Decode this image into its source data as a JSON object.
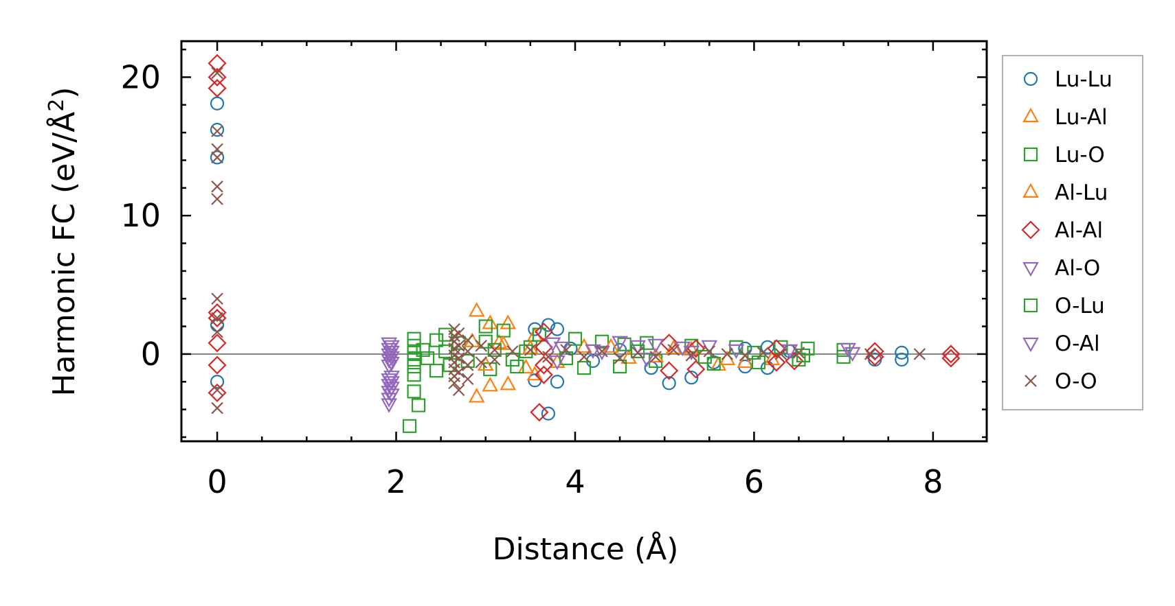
{
  "chart_data": {
    "type": "scatter",
    "xlabel": "Distance (Å)",
    "ylabel_main": "Harmonic FC (eV/Å",
    "ylabel_sup": "2",
    "ylabel_close": ")",
    "xlim": [
      -0.4,
      8.6
    ],
    "ylim": [
      -6.3,
      22.6
    ],
    "xticks": [
      0,
      2,
      4,
      6,
      8
    ],
    "yticks": [
      0,
      10,
      20
    ],
    "xtick_labels": [
      "0",
      "2",
      "4",
      "6",
      "8"
    ],
    "ytick_labels": [
      "0",
      "10",
      "20"
    ],
    "reference_line_y": 0,
    "legend_position": "outside-right",
    "series": [
      {
        "name": "Lu-Lu",
        "marker": "circle",
        "color": "#1f77b4",
        "points": [
          [
            0,
            18.1
          ],
          [
            0,
            16.2
          ],
          [
            0,
            14.2
          ],
          [
            0,
            2.1
          ],
          [
            0,
            -2.0
          ],
          [
            3.55,
            1.8
          ],
          [
            3.7,
            2.1
          ],
          [
            3.8,
            1.8
          ],
          [
            3.55,
            -1.9
          ],
          [
            3.8,
            -2.0
          ],
          [
            3.7,
            -4.3
          ],
          [
            3.95,
            0.4
          ],
          [
            4.2,
            -0.5
          ],
          [
            4.5,
            0.3
          ],
          [
            4.85,
            -1.0
          ],
          [
            5.05,
            -2.1
          ],
          [
            5.3,
            -1.7
          ],
          [
            5.55,
            -0.6
          ],
          [
            5.9,
            0.4
          ],
          [
            5.9,
            -0.9
          ],
          [
            6.15,
            0.5
          ],
          [
            6.15,
            -1.0
          ],
          [
            6.4,
            0.2
          ],
          [
            7.35,
            -0.4
          ],
          [
            7.65,
            0.1
          ],
          [
            7.65,
            -0.4
          ]
        ]
      },
      {
        "name": "Lu-Al",
        "marker": "triangle-up",
        "color": "#ff7f0e",
        "points": [
          [
            2.9,
            3.1
          ],
          [
            3.05,
            2.2
          ],
          [
            3.25,
            2.2
          ],
          [
            3.55,
            1.3
          ],
          [
            3.55,
            -1.5
          ],
          [
            2.9,
            -3.1
          ],
          [
            3.05,
            -2.3
          ],
          [
            3.25,
            -2.2
          ],
          [
            3.15,
            0.8
          ],
          [
            3.45,
            -1.0
          ],
          [
            4.1,
            0.5
          ],
          [
            4.6,
            -0.3
          ],
          [
            5.1,
            0.4
          ],
          [
            5.6,
            -0.8
          ],
          [
            5.9,
            -0.6
          ],
          [
            6.2,
            -0.4
          ]
        ]
      },
      {
        "name": "Lu-O",
        "marker": "square",
        "color": "#2ca02c",
        "points": [
          [
            2.2,
            1.1
          ],
          [
            2.2,
            0.6
          ],
          [
            2.2,
            0.1
          ],
          [
            2.2,
            -0.4
          ],
          [
            2.2,
            -0.9
          ],
          [
            2.2,
            -1.5
          ],
          [
            2.2,
            -2.7
          ],
          [
            2.25,
            -3.7
          ],
          [
            2.15,
            -5.2
          ],
          [
            2.45,
            1.0
          ],
          [
            2.45,
            -1.2
          ],
          [
            2.55,
            1.4
          ],
          [
            2.6,
            -0.8
          ],
          [
            2.7,
            0.8
          ],
          [
            3.0,
            0.9
          ],
          [
            3.0,
            2.0
          ],
          [
            3.05,
            -1.1
          ],
          [
            3.2,
            1.7
          ],
          [
            3.35,
            -0.9
          ],
          [
            3.5,
            0.5
          ],
          [
            3.6,
            1.4
          ],
          [
            4.0,
            1.1
          ],
          [
            4.3,
            0.9
          ],
          [
            4.55,
            0.7
          ],
          [
            4.8,
            0.8
          ],
          [
            4.1,
            -1.0
          ],
          [
            4.5,
            -0.9
          ],
          [
            4.9,
            -0.5
          ],
          [
            5.3,
            0.6
          ],
          [
            5.55,
            -0.7
          ],
          [
            5.8,
            0.5
          ],
          [
            6.05,
            -0.6
          ],
          [
            6.3,
            0.5
          ],
          [
            6.5,
            -0.4
          ],
          [
            6.6,
            0.4
          ],
          [
            7.0,
            0.3
          ],
          [
            7.0,
            -0.2
          ]
        ]
      },
      {
        "name": "Al-Lu",
        "marker": "triangle-up",
        "color": "#ff7f0e",
        "points": [
          [
            2.85,
            0.9
          ],
          [
            3.0,
            -0.8
          ],
          [
            3.2,
            0.7
          ],
          [
            3.5,
            0.4
          ],
          [
            3.8,
            -0.6
          ],
          [
            4.4,
            0.5
          ],
          [
            4.9,
            -0.2
          ],
          [
            5.3,
            0.3
          ],
          [
            5.7,
            -0.4
          ]
        ]
      },
      {
        "name": "Al-Al",
        "marker": "diamond",
        "color": "#d62728",
        "points": [
          [
            0,
            21.0
          ],
          [
            0,
            20.0
          ],
          [
            0,
            19.2
          ],
          [
            0,
            3.0
          ],
          [
            0,
            2.6
          ],
          [
            0,
            0.8
          ],
          [
            0,
            -0.8
          ],
          [
            0,
            -2.8
          ],
          [
            3.65,
            1.6
          ],
          [
            3.65,
            0.5
          ],
          [
            3.65,
            -0.8
          ],
          [
            3.65,
            -1.5
          ],
          [
            3.6,
            -4.2
          ],
          [
            5.05,
            0.8
          ],
          [
            5.05,
            -1.2
          ],
          [
            5.35,
            0.4
          ],
          [
            5.35,
            -1.1
          ],
          [
            6.25,
            0.4
          ],
          [
            6.25,
            -0.6
          ],
          [
            6.45,
            -0.5
          ],
          [
            7.35,
            0.2
          ],
          [
            7.35,
            -0.2
          ],
          [
            8.2,
            0.0
          ],
          [
            8.2,
            -0.3
          ]
        ]
      },
      {
        "name": "Al-O",
        "marker": "triangle-down",
        "color": "#9467bd",
        "points": [
          [
            1.92,
            0.8
          ],
          [
            1.92,
            0.4
          ],
          [
            1.92,
            0.0
          ],
          [
            1.92,
            -0.4
          ],
          [
            1.92,
            -0.8
          ],
          [
            1.92,
            -1.8
          ],
          [
            1.92,
            -2.2
          ],
          [
            1.92,
            -2.7
          ],
          [
            1.92,
            -3.2
          ],
          [
            1.92,
            -3.6
          ],
          [
            3.75,
            0.8
          ],
          [
            3.85,
            0.5
          ],
          [
            4.2,
            0.3
          ],
          [
            4.5,
            0.9
          ],
          [
            4.7,
            0.6
          ],
          [
            4.9,
            0.7
          ],
          [
            5.2,
            0.5
          ],
          [
            5.5,
            0.6
          ],
          [
            5.8,
            0.3
          ],
          [
            6.4,
            0.3
          ],
          [
            7.05,
            0.4
          ]
        ]
      },
      {
        "name": "O-Lu",
        "marker": "square",
        "color": "#2ca02c",
        "points": [
          [
            2.3,
            0.3
          ],
          [
            2.35,
            -0.3
          ],
          [
            2.55,
            0.2
          ],
          [
            2.8,
            -0.5
          ],
          [
            3.1,
            0.3
          ],
          [
            3.3,
            -0.4
          ],
          [
            3.45,
            0.2
          ],
          [
            3.9,
            -0.3
          ],
          [
            4.7,
            0.2
          ],
          [
            5.45,
            -0.2
          ],
          [
            6.0,
            0.1
          ],
          [
            6.55,
            -0.1
          ]
        ]
      },
      {
        "name": "O-Al",
        "marker": "triangle-down",
        "color": "#9467bd",
        "points": [
          [
            1.95,
            0.6
          ],
          [
            1.95,
            0.2
          ],
          [
            1.95,
            -0.2
          ],
          [
            1.95,
            -0.6
          ],
          [
            1.95,
            -1.6
          ],
          [
            1.95,
            -2.0
          ],
          [
            1.95,
            -2.4
          ],
          [
            1.95,
            -2.9
          ],
          [
            3.8,
            -0.5
          ],
          [
            4.3,
            0.2
          ],
          [
            4.8,
            -0.3
          ],
          [
            5.3,
            0.2
          ],
          [
            7.1,
            0.1
          ]
        ]
      },
      {
        "name": "O-O",
        "marker": "x",
        "color": "#8c564b",
        "points": [
          [
            0,
            20.3
          ],
          [
            0,
            16.1
          ],
          [
            0,
            14.8
          ],
          [
            0,
            14.2
          ],
          [
            0,
            12.1
          ],
          [
            0,
            11.2
          ],
          [
            0,
            4.0
          ],
          [
            0,
            2.6
          ],
          [
            0,
            1.6
          ],
          [
            0,
            -2.6
          ],
          [
            0,
            -3.9
          ],
          [
            2.65,
            1.8
          ],
          [
            2.65,
            1.3
          ],
          [
            2.65,
            0.9
          ],
          [
            2.65,
            0.4
          ],
          [
            2.65,
            -0.1
          ],
          [
            2.65,
            -0.6
          ],
          [
            2.65,
            -1.1
          ],
          [
            2.65,
            -1.6
          ],
          [
            2.65,
            -2.1
          ],
          [
            2.7,
            1.5
          ],
          [
            2.7,
            0.6
          ],
          [
            2.7,
            -0.3
          ],
          [
            2.7,
            -1.3
          ],
          [
            2.7,
            -2.6
          ],
          [
            2.8,
            1.0
          ],
          [
            2.8,
            0.2
          ],
          [
            2.8,
            -0.8
          ],
          [
            2.8,
            -1.8
          ],
          [
            2.95,
            0.6
          ],
          [
            2.95,
            -0.6
          ],
          [
            3.1,
            0.3
          ],
          [
            3.1,
            -0.4
          ],
          [
            3.3,
            0.2
          ],
          [
            3.5,
            0.3
          ],
          [
            3.7,
            -0.2
          ],
          [
            3.9,
            0.3
          ],
          [
            4.1,
            -0.2
          ],
          [
            4.3,
            0.2
          ],
          [
            4.5,
            -0.3
          ],
          [
            4.7,
            0.1
          ],
          [
            4.9,
            -0.2
          ],
          [
            5.1,
            0.3
          ],
          [
            5.3,
            -0.1
          ],
          [
            5.5,
            0.2
          ],
          [
            5.7,
            0.0
          ],
          [
            5.9,
            -0.1
          ],
          [
            6.1,
            0.1
          ],
          [
            6.3,
            0.0
          ],
          [
            6.5,
            0.1
          ],
          [
            7.3,
            0.0
          ],
          [
            7.85,
            0.0
          ]
        ]
      }
    ]
  }
}
